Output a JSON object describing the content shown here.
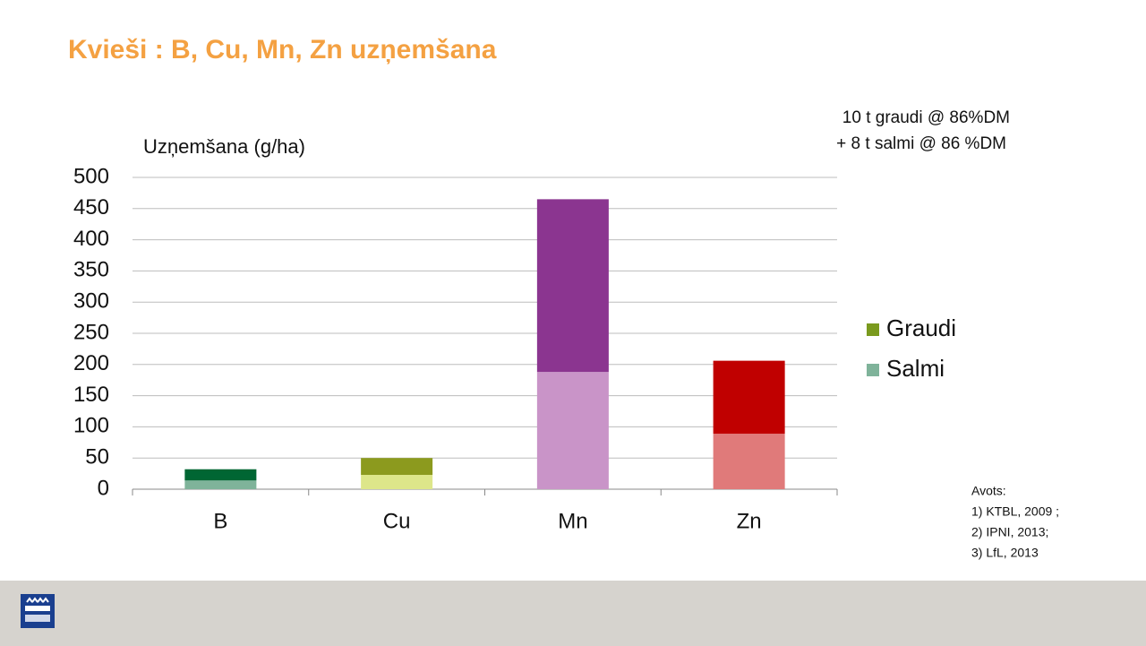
{
  "chart_data": {
    "type": "stacked_bar",
    "title": "Kvieši : B, Cu, Mn, Zn uzņemšana",
    "y_label": "Uzņemšana (g/ha)",
    "annotation": [
      "10 t graudi  @ 86%DM",
      "+ 8 t salmi  @ 86 %DM"
    ],
    "sources": [
      "Avots:",
      "1) KTBL, 2009 ;",
      "2) IPNI, 2013;",
      "3) LfL, 2013"
    ],
    "categories": [
      "B",
      "Cu",
      "Mn",
      "Zn"
    ],
    "series": [
      {
        "name": "Salmi",
        "color": "#7fb39a",
        "point_colors": [
          "#7fb39a",
          "#dde68a",
          "#c994c8",
          "#e07a7a"
        ],
        "values": [
          14,
          23,
          188,
          89
        ]
      },
      {
        "name": "Graudi",
        "color": "#7a9a1e",
        "point_colors": [
          "#006633",
          "#8c9a1e",
          "#8b3590",
          "#c00000"
        ],
        "values": [
          18,
          27,
          277,
          117
        ]
      }
    ],
    "ylim": [
      0,
      500
    ],
    "yticks": [
      0,
      50,
      100,
      150,
      200,
      250,
      300,
      350,
      400,
      450,
      500
    ],
    "grid": true
  }
}
